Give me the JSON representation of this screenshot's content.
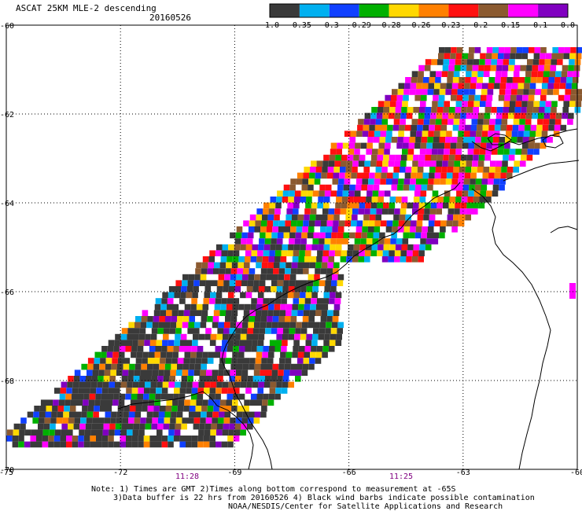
{
  "header": {
    "title": "ASCAT 25KM MLE-2 descending",
    "date": "20160526"
  },
  "colorbar": {
    "colors": [
      "#3a3a3a",
      "#00b0f0",
      "#1040ff",
      "#00b000",
      "#ffd800",
      "#ff8000",
      "#ff1010",
      "#8b5a30",
      "#ff00ff",
      "#8000c0"
    ],
    "labels": [
      "-1.0",
      "-0.35",
      "-0.3",
      "-0.29",
      "-0.28",
      "-0.26",
      "-0.23",
      "-0.2",
      "-0.15",
      "-0.1",
      "0.0"
    ]
  },
  "axes": {
    "x_ticks": [
      "-75",
      "-72",
      "-69",
      "-66",
      "-63",
      "-60"
    ],
    "y_ticks": [
      "-60",
      "-62",
      "-64",
      "-66",
      "-68",
      "-70"
    ]
  },
  "pass_times": [
    "11:28",
    "11:25"
  ],
  "notes": [
    "Note: 1) Times are GMT 2)Times along bottom correspond to measurement at -65S",
    "3)Data buffer is 22 hrs from 20160526 4) Black wind barbs indicate possible contamination",
    "NOAA/NESDIS/Center for Satellite Applications and Research"
  ]
}
